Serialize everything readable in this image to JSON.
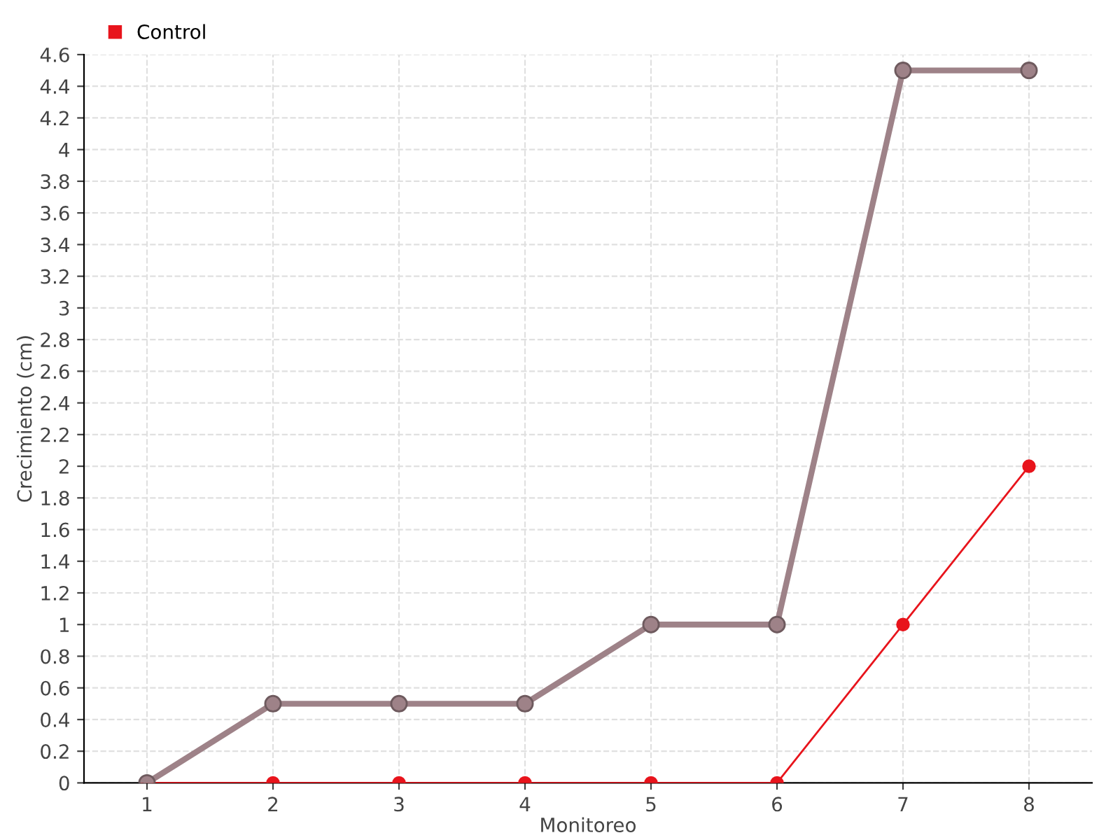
{
  "chart_data": {
    "type": "line",
    "xlabel": "Monitoreo",
    "ylabel": "Crecimiento (cm)",
    "x": [
      1,
      2,
      3,
      4,
      5,
      6,
      7,
      8
    ],
    "series": [
      {
        "color": "#9e8288",
        "values": [
          0,
          0.5,
          0.5,
          0.5,
          1,
          1,
          4.5,
          4.5
        ]
      },
      {
        "name": "Control",
        "color": "#e8141c",
        "values": [
          0,
          0,
          0,
          0,
          0,
          0,
          1,
          2
        ]
      }
    ],
    "xlim": [
      0.5,
      8.5
    ],
    "xticks": [
      1,
      2,
      3,
      4,
      5,
      6,
      7,
      8
    ],
    "ylim": [
      0,
      4.6
    ],
    "yticks": [
      0,
      0.2,
      0.4,
      0.6,
      0.8,
      1,
      1.2,
      1.4,
      1.6,
      1.8,
      2,
      2.2,
      2.4,
      2.6,
      2.8,
      3,
      3.2,
      3.4,
      3.6,
      3.8,
      4,
      4.2,
      4.4,
      4.6
    ],
    "grid": true,
    "legend": "top left",
    "marker": "circle",
    "line_style": "solid"
  }
}
